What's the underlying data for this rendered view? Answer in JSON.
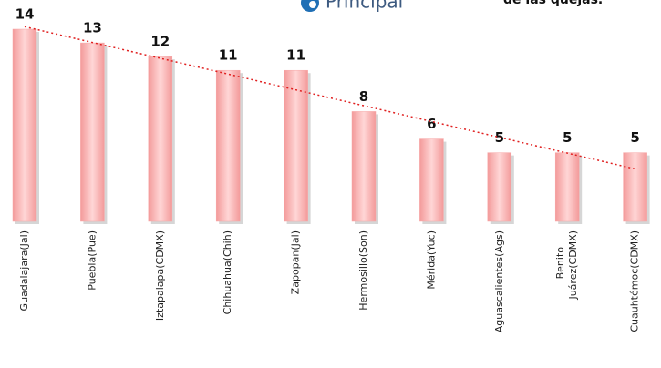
{
  "chart_data": {
    "type": "bar",
    "annotations": [
      "Principal",
      "de las quejas."
    ],
    "categories": [
      "Guadalajara(Jal)",
      "Puebla(Pue)",
      "Iztapalapa(CDMX)",
      "Chihuahua(Chih)",
      "Zapopan(Jal)",
      "Hermosillo(Son)",
      "Mérida(Yuc)",
      "Aguascalientes(Ags)",
      "Benito Juárez(CDMX)",
      "Cuauhtémoc(CDMX)"
    ],
    "values": [
      14,
      13,
      12,
      11,
      11,
      8,
      6,
      5,
      5,
      5
    ],
    "color": "#f7a8a8",
    "ylim": [
      0,
      14
    ],
    "trendline": "linear",
    "trendline_color": "#e02020"
  }
}
